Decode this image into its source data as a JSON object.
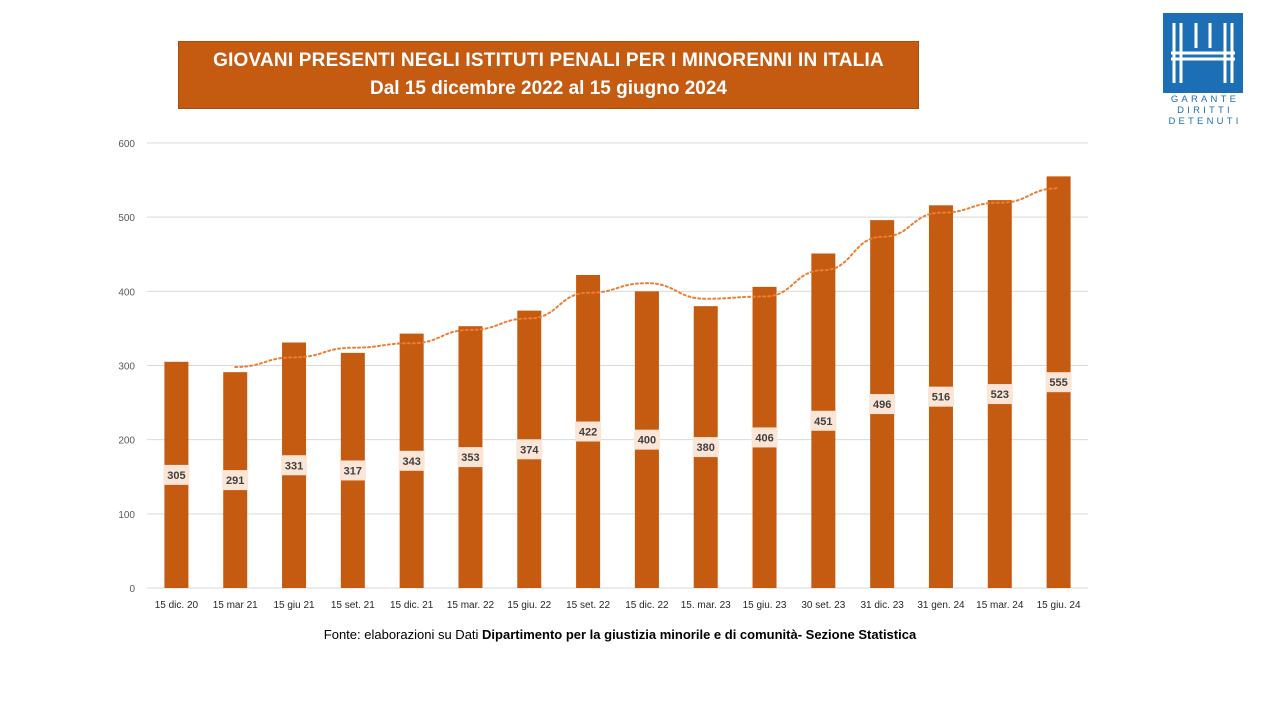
{
  "title": {
    "line1": "GIOVANI PRESENTI NEGLI ISTITUTI PENALI PER I MINORENNI IN ITALIA",
    "line2": "Dal 15 dicembre 2022 al 15 giugno 2024"
  },
  "logo": {
    "lines": [
      "GARANTE",
      "DIRITTI",
      "DETENUTI"
    ]
  },
  "source": {
    "prefix": "Fonte:  elaborazioni su Dati ",
    "bold": "Dipartimento per la giustizia minorile e di comunità- Sezione Statistica"
  },
  "colors": {
    "bar": "#c55a11",
    "trend": "#ed7d31",
    "label_bg": "#fbe5d6",
    "grid": "#d9d9d9",
    "logo": "#1d6fb5"
  },
  "chart_data": {
    "type": "bar",
    "categories": [
      "15 dic. 20",
      "15 mar 21",
      "15 giu 21",
      "15 set. 21",
      "15 dic. 21",
      "15 mar. 22",
      "15 giu. 22",
      "15 set. 22",
      "15 dic. 22",
      "15. mar. 23",
      "15 giu. 23",
      "30 set. 23",
      "31 dic. 23",
      "31 gen. 24",
      "15 mar. 24",
      "15 giu. 24"
    ],
    "values": [
      305,
      291,
      331,
      317,
      343,
      353,
      374,
      422,
      400,
      380,
      406,
      451,
      496,
      516,
      523,
      555
    ],
    "ylim": [
      0,
      600
    ],
    "yticks": [
      0,
      100,
      200,
      300,
      400,
      500,
      600
    ],
    "trendline": "moving average (2 periods), dotted",
    "grid": true,
    "legend": "none"
  }
}
